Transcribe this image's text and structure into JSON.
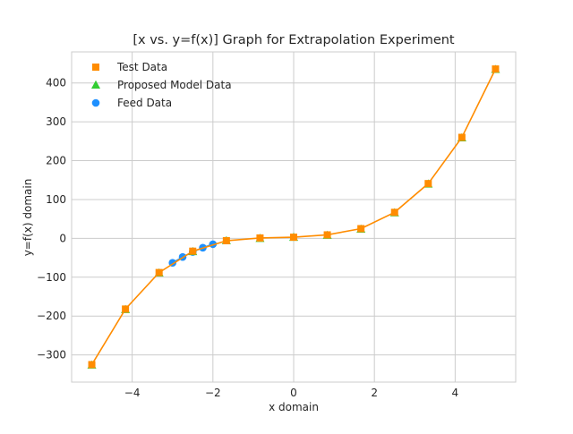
{
  "chart_data": {
    "type": "scatter",
    "title": "[x vs. y=f(x)] Graph for Extrapolation Experiment",
    "xlabel": "x domain",
    "ylabel": "y=f(x) domain",
    "xlim": [
      -5.5,
      5.5
    ],
    "ylim": [
      -370,
      480
    ],
    "xticks": [
      -4,
      -2,
      0,
      2,
      4
    ],
    "xtick_labels": [
      "−4",
      "−2",
      "0",
      "2",
      "4"
    ],
    "yticks": [
      -300,
      -200,
      -100,
      0,
      100,
      200,
      300,
      400
    ],
    "ytick_labels": [
      "−300",
      "−200",
      "−100",
      "0",
      "100",
      "200",
      "300",
      "400"
    ],
    "grid": true,
    "legend_position": "top-left",
    "series": [
      {
        "name": "Test Data",
        "marker": "square",
        "color": "#ff8c00",
        "connected": true,
        "x": [
          -5.0,
          -4.1667,
          -3.3333,
          -2.5,
          -1.6667,
          -0.8333,
          0.0,
          0.8333,
          1.6667,
          2.5,
          3.3333,
          4.1667,
          5.0
        ],
        "y": [
          -325,
          -182,
          -88,
          -33,
          -6,
          1,
          3,
          9,
          25,
          67,
          141,
          260,
          436
        ]
      },
      {
        "name": "Proposed Model Data",
        "marker": "triangle",
        "color": "#32cd32",
        "connected": false,
        "x": [
          -5.0,
          -4.1667,
          -3.3333,
          -2.5,
          -1.6667,
          -0.8333,
          0.0,
          0.8333,
          1.6667,
          2.5,
          3.3333,
          4.1667,
          5.0
        ],
        "y": [
          -326,
          -183,
          -89,
          -34,
          -6,
          0,
          3,
          8,
          24,
          66,
          140,
          259,
          435
        ]
      },
      {
        "name": "Feed Data",
        "marker": "circle",
        "color": "#1e90ff",
        "connected": true,
        "x": [
          -3.0,
          -2.75,
          -2.5,
          -2.25,
          -2.0
        ],
        "y": [
          -63,
          -48,
          -35,
          -24,
          -15
        ]
      }
    ]
  }
}
